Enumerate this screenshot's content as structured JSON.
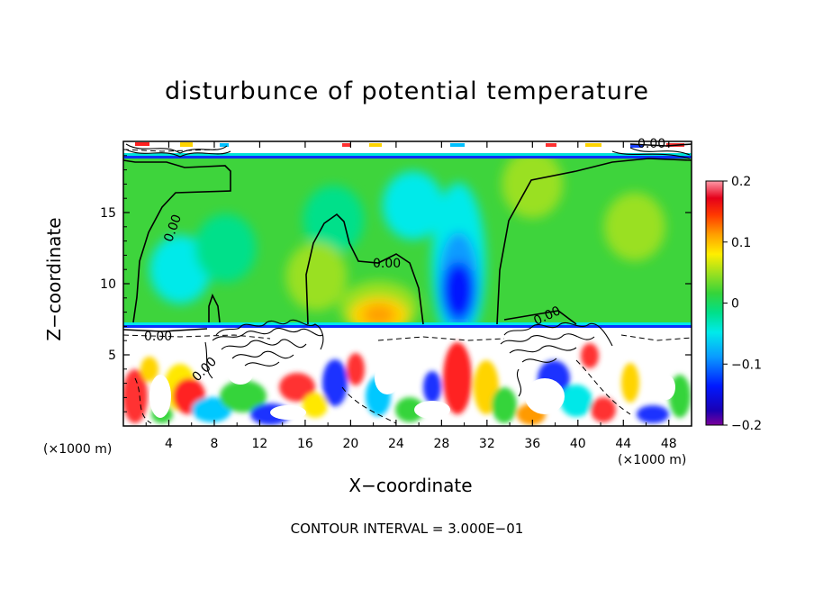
{
  "chart_data": {
    "type": "heatmap",
    "title": "disturbunce of potential temperature",
    "xlabel": "X−coordinate",
    "ylabel": "Z−coordinate",
    "x_unit_label": "(×1000 m)",
    "x_unit_label_right": "(×1000 m)",
    "xlim": [
      0,
      50
    ],
    "ylim": [
      0,
      20
    ],
    "x_ticks": [
      4,
      8,
      12,
      16,
      20,
      24,
      28,
      32,
      36,
      40,
      44,
      48
    ],
    "y_ticks": [
      5,
      10,
      15
    ],
    "colorbar": {
      "range": [
        -0.2,
        0.2
      ],
      "ticks": [
        "0.2",
        "0.1",
        "0",
        "−0.1",
        "−0.2"
      ],
      "tick_values": [
        0.2,
        0.1,
        0,
        -0.1,
        -0.2
      ]
    },
    "contour_labels": [
      "0.00",
      "0.00",
      "0.00",
      "0.00",
      "0.00",
      "0.00"
    ],
    "footer": "CONTOUR INTERVAL = 3.000E−01",
    "features": [
      {
        "x": 22.5,
        "z": 7.8,
        "value": 0.09
      },
      {
        "x": 29.5,
        "z": 9.5,
        "value": -0.13
      },
      {
        "x": 25.5,
        "z": 15.5,
        "value": -0.03
      },
      {
        "x": 18.5,
        "z": 14.5,
        "value": -0.02
      },
      {
        "x": 5.0,
        "z": 11.0,
        "value": -0.04
      },
      {
        "x": 9.0,
        "z": 12.5,
        "value": -0.02
      },
      {
        "x": 45.0,
        "z": 14.0,
        "value": 0.03
      },
      {
        "x": 17.0,
        "z": 10.5,
        "value": 0.02
      },
      {
        "x": 36.0,
        "z": 17.0,
        "value": 0.025
      }
    ]
  }
}
